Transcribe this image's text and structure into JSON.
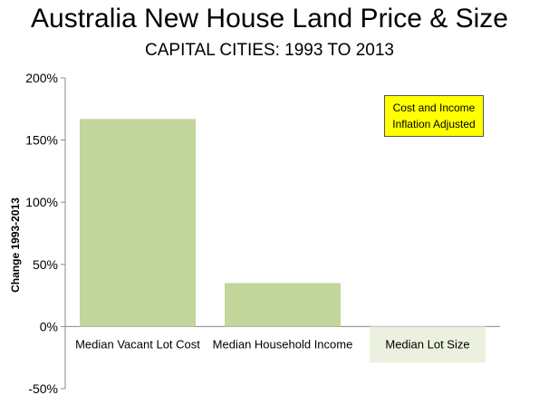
{
  "chart_data": {
    "type": "bar",
    "title": "Australia New House Land Price & Size",
    "subtitle": "CAPITAL CITIES: 1993 TO 2013",
    "ylabel": "Change 1993-2013",
    "xlabel": "",
    "categories": [
      "Median Vacant Lot Cost",
      "Median Household Income",
      "Median Lot Size"
    ],
    "values": [
      167,
      35,
      -29
    ],
    "ylim": [
      -50,
      200
    ],
    "yticks": [
      -50,
      0,
      50,
      100,
      150,
      200
    ],
    "ytick_labels": [
      "-50%",
      "0%",
      "50%",
      "100%",
      "150%",
      "200%"
    ],
    "bar_colors": [
      "#c3d69b",
      "#c3d69b",
      "#ebf1de"
    ],
    "grid": false,
    "annotation": {
      "line1": "Cost and Income",
      "line2": "Inflation Adjusted",
      "background": "#ffff00"
    }
  }
}
